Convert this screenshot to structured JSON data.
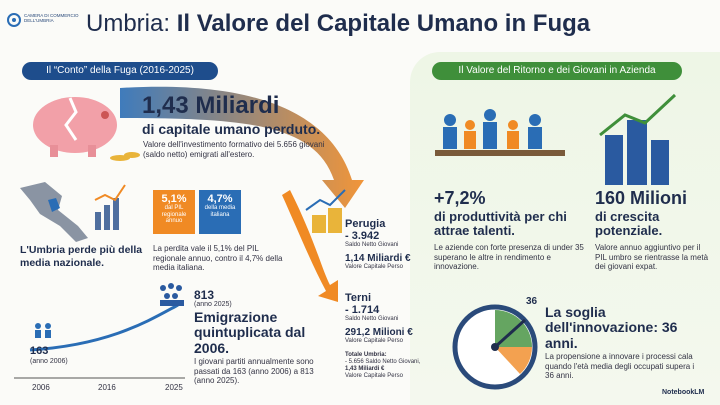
{
  "header": {
    "logo": [
      "CAMERA DI COMMERCIO",
      "DELL'UMBRIA"
    ],
    "title_region": "Umbria:",
    "title_main": "Il Valore del Capitale Umano in Fuga"
  },
  "left": {
    "heading": "Il “Conto” della Fuga (2016-2025)",
    "headline": {
      "value": "1,43 Miliardi",
      "subtitle": "di capitale umano perduto.",
      "note": "Valore dell'investimento formativo dei 5.656 giovani (saldo netto) emigrati all'estero."
    },
    "map_caption": "L'Umbria perde più della media nazionale.",
    "badges": [
      {
        "value": "5,1%",
        "label": "dal PIL regionale annuo"
      },
      {
        "value": "4,7%",
        "label": "della media italiana"
      }
    ],
    "comparison": "La perdita vale il 5,1% del PIL regionale annuo, contro il 4,7% della media italiana.",
    "growth": {
      "end_value": "813",
      "end_year": "(anno 2025)",
      "start_value": "163",
      "start_year": "(anno 2006)",
      "years": [
        "2006",
        "2016",
        "2025"
      ],
      "title": "Emigrazione quintuplicata dal 2006.",
      "text": "I giovani partiti annualmente sono passati da 163 (anno 2006) a 813 (anno 2025)."
    }
  },
  "provinces": [
    {
      "name": "Perugia",
      "balance": "- 3.942",
      "balance_label": "Saldo Netto Giovani",
      "value": "1,14 Miliardi €",
      "value_label": "Valore Capitale Perso"
    },
    {
      "name": "Terni",
      "balance": "- 1.714",
      "balance_label": "Saldo Netto Giovani",
      "value": "291,2 Milioni €",
      "value_label": "Valore Capitale Perso"
    }
  ],
  "total": {
    "label": "Totale Umbria:",
    "balance": "- 5.656 Saldo Netto Giovani,",
    "value": "1,43 Miliardi €",
    "value_label": "Valore Capitale Perso"
  },
  "right": {
    "heading": "Il Valore del Ritorno e dei Giovani in Azienda",
    "productivity": {
      "value": "+7,2%",
      "subtitle": "di produttività per chi attrae talenti.",
      "text": "Le aziende con forte presenza di under 35 superano le altre in rendimento e innovazione."
    },
    "growth": {
      "value": "160 Milioni",
      "subtitle": "di crescita potenziale.",
      "text": "Valore annuo aggiuntivo per il PIL umbro se rientrasse la metà dei giovani expat."
    },
    "threshold": {
      "gauge_label": "36",
      "title": "La soglia dell'innovazione: 36 anni.",
      "text": "La propensione a innovare i processi cala quando l'età media degli occupati supera i 36 anni."
    }
  },
  "footer": {
    "brand": "NotebookLM"
  }
}
